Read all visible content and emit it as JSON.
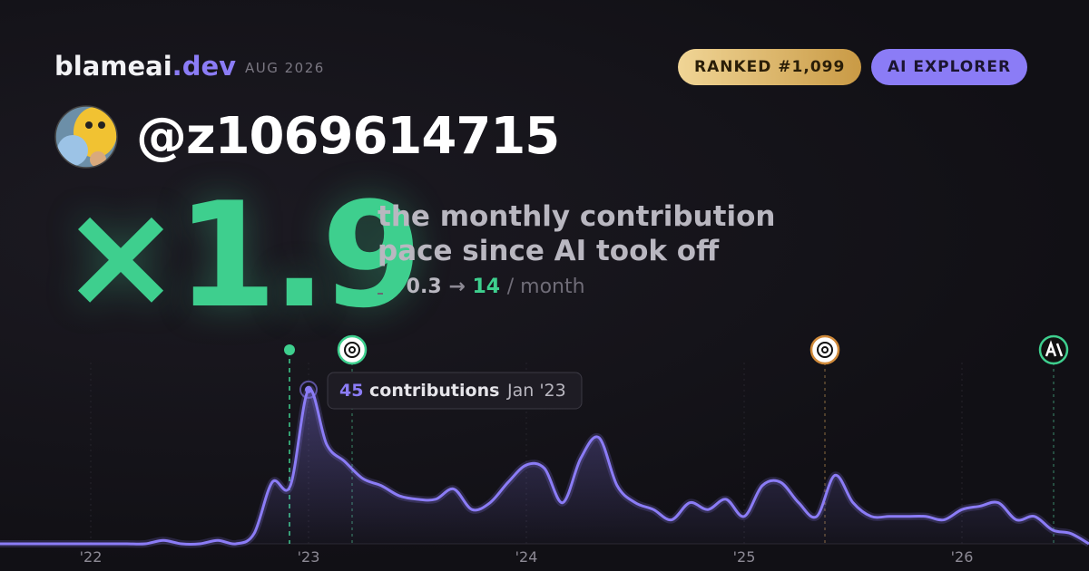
{
  "header": {
    "brand": "blameai",
    "brand_suffix": ".dev",
    "date": "AUG 2026",
    "rank_badge": "RANKED #1,099",
    "tier_badge": "AI EXPLORER",
    "handle": "@z1069614715"
  },
  "hero": {
    "multiplier": "×1.9",
    "caption_line1": "the monthly contribution",
    "caption_line2": "pace since AI took off",
    "before": "0.3",
    "arrow": "→",
    "after": "14",
    "unit": "/ month"
  },
  "chart_data": {
    "type": "area",
    "categories": [
      null,
      null,
      null,
      null,
      null,
      "'22",
      null,
      null,
      null,
      null,
      null,
      null,
      null,
      null,
      null,
      null,
      null,
      "'23",
      null,
      null,
      null,
      null,
      null,
      null,
      null,
      null,
      null,
      null,
      null,
      "'24",
      null,
      null,
      null,
      null,
      null,
      null,
      null,
      null,
      null,
      null,
      null,
      "'25",
      null,
      null,
      null,
      null,
      null,
      null,
      null,
      null,
      null,
      null,
      null,
      "'26",
      null,
      null,
      null,
      null,
      null,
      null,
      null
    ],
    "series": [
      {
        "name": "contributions",
        "color": "#8b7cf6",
        "values": [
          0,
          0,
          0,
          0,
          0,
          0,
          0,
          0,
          0,
          1,
          0,
          0,
          1,
          0,
          3,
          18,
          17,
          45,
          29,
          24,
          19,
          17,
          14,
          13,
          13,
          16,
          10,
          12,
          18,
          23,
          22,
          12,
          25,
          31,
          17,
          12,
          10,
          7,
          12,
          10,
          13,
          8,
          17,
          18,
          12,
          8,
          20,
          12,
          8,
          8,
          8,
          8,
          7,
          10,
          11,
          12,
          7,
          8,
          4,
          3,
          0
        ]
      }
    ],
    "ylim": [
      0,
      50
    ],
    "grid": true,
    "tooltip": {
      "label": "contributions",
      "date": "Jan '23"
    }
  }
}
